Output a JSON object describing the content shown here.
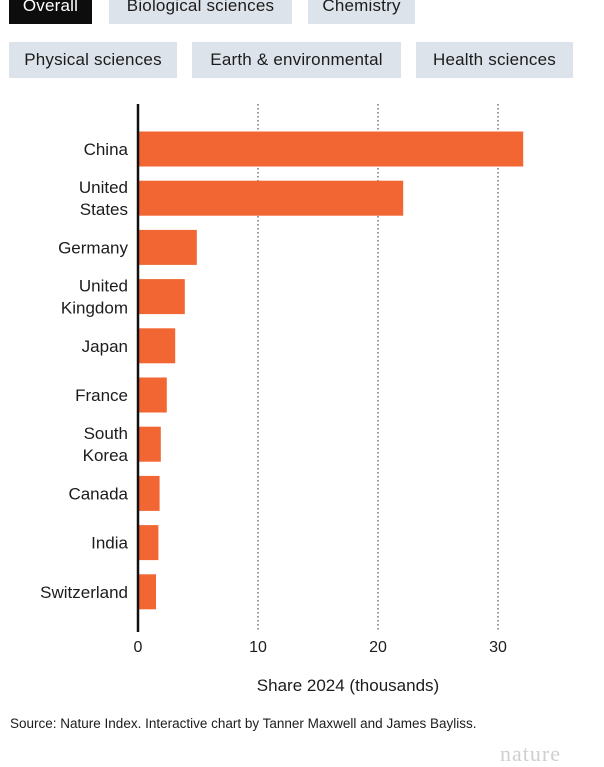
{
  "tabs": [
    {
      "label": "Overall",
      "active": true
    },
    {
      "label": "Biological sciences",
      "active": false
    },
    {
      "label": "Chemistry",
      "active": false
    },
    {
      "label": "Physical sciences",
      "active": false
    },
    {
      "label": "Earth & environmental",
      "active": false
    },
    {
      "label": "Health sciences",
      "active": false
    }
  ],
  "colors": {
    "bar": "#f26633",
    "tab_active_bg": "#0d0d0d",
    "tab_inactive_bg": "#dde3ea"
  },
  "chart_data": {
    "type": "bar",
    "orientation": "horizontal",
    "categories": [
      [
        "China"
      ],
      [
        "United",
        "States"
      ],
      [
        "Germany"
      ],
      [
        "United",
        "Kingdom"
      ],
      [
        "Japan"
      ],
      [
        "France"
      ],
      [
        "South",
        "Korea"
      ],
      [
        "Canada"
      ],
      [
        "India"
      ],
      [
        "Switzerland"
      ]
    ],
    "values": [
      32.1,
      22.1,
      4.9,
      3.9,
      3.1,
      2.4,
      1.9,
      1.8,
      1.7,
      1.5
    ],
    "xlabel": "Share 2024 (thousands)",
    "xlim": [
      0,
      35
    ],
    "xticks": [
      0,
      10,
      20,
      30
    ],
    "grid": "vertical dotted"
  },
  "source": "Source: Nature Index. Interactive chart by Tanner Maxwell and James Bayliss.",
  "logo_text": "nature"
}
